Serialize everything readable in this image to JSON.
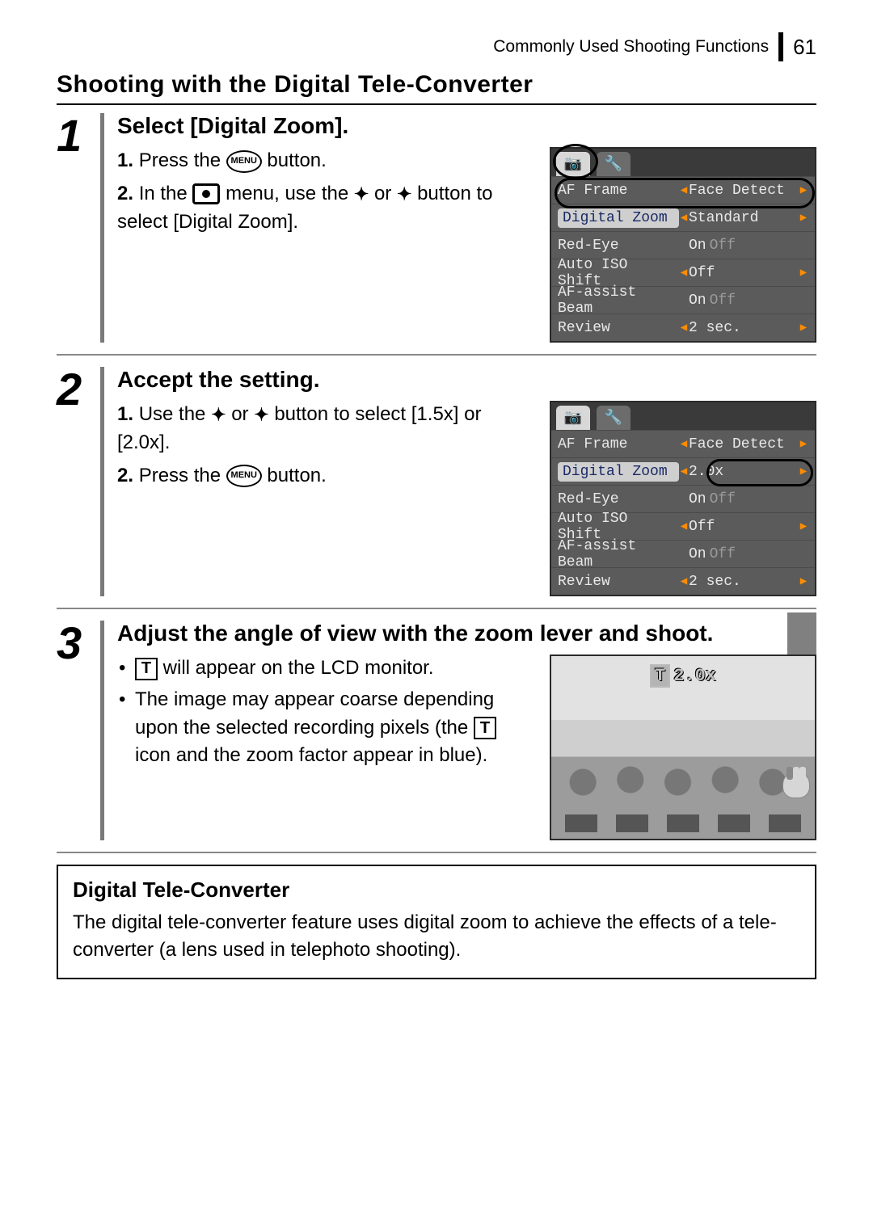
{
  "header": {
    "running": "Commonly Used Shooting Functions",
    "page": "61"
  },
  "section_title": "Shooting with the Digital Tele-Converter",
  "steps": [
    {
      "num": "1",
      "title": "Select [Digital Zoom].",
      "lines": {
        "a_num": "1.",
        "a_pre": "Press the ",
        "a_post": " button.",
        "b_num": "2.",
        "b_pre": "In the ",
        "b_mid": " menu, use the ",
        "b_or": " or ",
        "b_post": " button to select [Digital Zoom]."
      }
    },
    {
      "num": "2",
      "title": "Accept the setting.",
      "lines": {
        "a_num": "1.",
        "a_pre": "Use the ",
        "a_or": " or ",
        "a_post": " button to select [1.5x] or [2.0x].",
        "b_num": "2.",
        "b_pre": "Press the ",
        "b_post": " button."
      }
    },
    {
      "num": "3",
      "title": "Adjust the angle of view with the zoom lever and shoot.",
      "bullets": {
        "b1_post": " will appear on the LCD monitor.",
        "b2_pre": "The image may appear coarse depending upon the selected recording pixels (the ",
        "b2_post": " icon and the zoom factor appear in blue)."
      }
    }
  ],
  "menu1": {
    "tabs": {
      "cam": "📷",
      "tools": "🔧"
    },
    "rows": [
      {
        "label": "AF Frame",
        "val": "Face Detect"
      },
      {
        "label": "Digital Zoom",
        "val": "Standard",
        "hl": true
      },
      {
        "label": "Red-Eye",
        "val": "On",
        "dim": "Off"
      },
      {
        "label": "Auto ISO Shift",
        "val": "Off"
      },
      {
        "label": "AF-assist Beam",
        "val": "On",
        "dim": "Off"
      },
      {
        "label": "Review",
        "val": "2 sec."
      }
    ]
  },
  "menu2": {
    "rows": [
      {
        "label": "AF Frame",
        "val": "Face Detect"
      },
      {
        "label": "Digital Zoom",
        "val": "2.0x",
        "hl": true
      },
      {
        "label": "Red-Eye",
        "val": "On",
        "dim": "Off"
      },
      {
        "label": "Auto ISO Shift",
        "val": "Off"
      },
      {
        "label": "AF-assist Beam",
        "val": "On",
        "dim": "Off"
      },
      {
        "label": "Review",
        "val": "2 sec."
      }
    ]
  },
  "lcd": {
    "t": "T",
    "zoom": "2.0x"
  },
  "info": {
    "title": "Digital Tele-Converter",
    "text": "The digital tele-converter feature uses digital zoom to achieve the effects of a tele-converter (a lens used in telephoto shooting)."
  },
  "icons": {
    "menu": "MENU"
  },
  "colors": {
    "accent": "#ff8c00",
    "menu_bg": "#5b5b5b",
    "hl_bg": "#cfcfcf",
    "hl_fg": "#1a2a66"
  }
}
